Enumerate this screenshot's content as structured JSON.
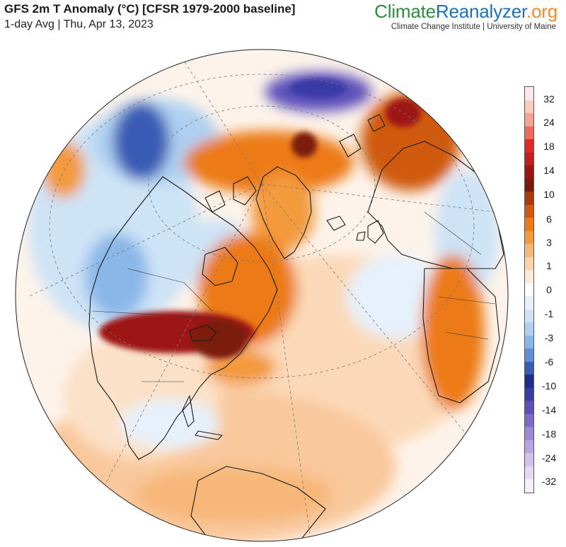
{
  "header": {
    "title": "GFS 2m T Anomaly (°C) [CFSR 1979-2000 baseline]",
    "subtitle": "1-day Avg | Thu, Apr 13, 2023"
  },
  "brand": {
    "part1": "Climate",
    "part2": "Reanalyzer",
    "part3": ".org",
    "tagline": "Climate Change Institute | University of Maine",
    "colors": {
      "climate": "#2e8b3e",
      "reanalyzer": "#1f6fb5",
      "org": "#f08a24"
    }
  },
  "legend": {
    "colors": [
      "#fbe9e9",
      "#f9cdbe",
      "#f5a394",
      "#ef6a5e",
      "#e02a22",
      "#c41d1d",
      "#9d1412",
      "#7c1a0b",
      "#a83c09",
      "#cf5a10",
      "#ec7a16",
      "#f39a3c",
      "#f7b779",
      "#fbd4ad",
      "#fcebd9",
      "#ffffff",
      "#e6f1fb",
      "#cde3f6",
      "#aed0f1",
      "#8ab7e8",
      "#5f8fd6",
      "#3a5bb5",
      "#1e2c8e",
      "#3b3ba7",
      "#5c50bb",
      "#7b6ac9",
      "#9b88d6",
      "#b8a6e2",
      "#d2c2ec",
      "#e6daf3",
      "#f6f0fa"
    ],
    "ticks": [
      {
        "label": "32",
        "frac": 0.032
      },
      {
        "label": "24",
        "frac": 0.088
      },
      {
        "label": "18",
        "frac": 0.147
      },
      {
        "label": "14",
        "frac": 0.207
      },
      {
        "label": "10",
        "frac": 0.266
      },
      {
        "label": "6",
        "frac": 0.326
      },
      {
        "label": "3",
        "frac": 0.383
      },
      {
        "label": "1",
        "frac": 0.441
      },
      {
        "label": "0",
        "frac": 0.5
      },
      {
        "label": "-1",
        "frac": 0.559
      },
      {
        "label": "-3",
        "frac": 0.618
      },
      {
        "label": "-6",
        "frac": 0.677
      },
      {
        "label": "-10",
        "frac": 0.736
      },
      {
        "label": "-14",
        "frac": 0.795
      },
      {
        "label": "-18",
        "frac": 0.854
      },
      {
        "label": "-24",
        "frac": 0.913
      },
      {
        "label": "-32",
        "frac": 0.971
      }
    ]
  }
}
